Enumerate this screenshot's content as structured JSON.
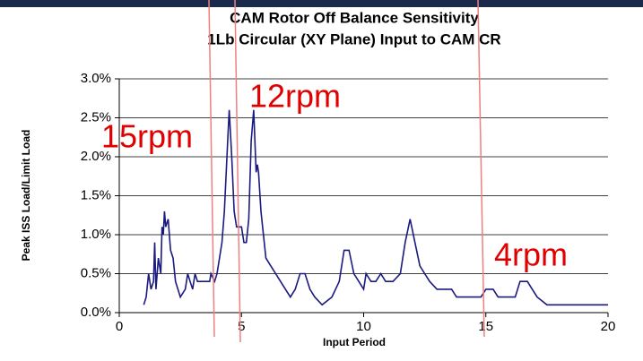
{
  "chart_data": {
    "type": "line",
    "title": "CAM Rotor Off Balance Sensitivity",
    "subtitle": "1Lb Circular (XY Plane) Input to CAM CR",
    "xlabel": "Input Period",
    "ylabel": "Peak ISS Load/Limit Load",
    "x": [
      1.0,
      1.1,
      1.2,
      1.3,
      1.4,
      1.45,
      1.5,
      1.6,
      1.7,
      1.75,
      1.8,
      1.85,
      1.9,
      2.0,
      2.1,
      2.2,
      2.3,
      2.4,
      2.5,
      2.7,
      2.8,
      2.9,
      3.0,
      3.1,
      3.2,
      3.5,
      3.7,
      3.75,
      3.9,
      4.0,
      4.2,
      4.3,
      4.45,
      4.5,
      4.6,
      4.7,
      4.8,
      5.0,
      5.1,
      5.2,
      5.3,
      5.4,
      5.5,
      5.6,
      5.65,
      5.7,
      5.8,
      6.0,
      6.2,
      6.4,
      6.6,
      6.8,
      7.0,
      7.2,
      7.4,
      7.6,
      7.8,
      8.0,
      8.3,
      8.7,
      9.0,
      9.2,
      9.4,
      9.6,
      9.8,
      10.0,
      10.1,
      10.3,
      10.5,
      10.7,
      10.9,
      11.2,
      11.5,
      11.7,
      11.9,
      12.1,
      12.3,
      12.5,
      12.7,
      13.0,
      13.6,
      13.8,
      14.8,
      15.0,
      15.3,
      15.5,
      16.2,
      16.4,
      16.7,
      16.9,
      17.1,
      17.5,
      20.0
    ],
    "series": [
      {
        "name": "Peak ISS Load/Limit Load",
        "color": "#1a1a80",
        "values": [
          0.1,
          0.2,
          0.5,
          0.3,
          0.4,
          0.9,
          0.3,
          0.7,
          0.5,
          1.1,
          1.0,
          1.3,
          1.1,
          1.2,
          0.8,
          0.7,
          0.4,
          0.3,
          0.2,
          0.3,
          0.5,
          0.4,
          0.3,
          0.5,
          0.4,
          0.4,
          0.4,
          0.5,
          0.4,
          0.5,
          0.9,
          1.3,
          2.3,
          2.6,
          2.0,
          1.3,
          1.1,
          1.1,
          0.9,
          0.9,
          1.2,
          2.2,
          2.6,
          1.8,
          1.9,
          1.8,
          1.3,
          0.7,
          0.6,
          0.5,
          0.4,
          0.3,
          0.2,
          0.3,
          0.5,
          0.5,
          0.3,
          0.2,
          0.1,
          0.2,
          0.4,
          0.8,
          0.8,
          0.5,
          0.4,
          0.3,
          0.5,
          0.4,
          0.4,
          0.5,
          0.4,
          0.4,
          0.5,
          0.9,
          1.2,
          0.9,
          0.6,
          0.5,
          0.4,
          0.3,
          0.3,
          0.2,
          0.2,
          0.3,
          0.3,
          0.2,
          0.2,
          0.4,
          0.4,
          0.3,
          0.2,
          0.1,
          0.1
        ]
      }
    ],
    "xlim": [
      0,
      20
    ],
    "xticks": [
      0,
      5,
      10,
      15,
      20
    ],
    "ylim": [
      0,
      3
    ],
    "yticks": [
      {
        "value": 0,
        "label": "0.0%"
      },
      {
        "value": 0.5,
        "label": "0.5%"
      },
      {
        "value": 1,
        "label": "1.0%"
      },
      {
        "value": 1.5,
        "label": "1.5%"
      },
      {
        "value": 2,
        "label": "2.0%"
      },
      {
        "value": 2.5,
        "label": "2.5%"
      },
      {
        "value": 3,
        "label": "3.0%"
      }
    ],
    "grid": true,
    "annotations": [
      "15rpm",
      "12rpm",
      "4rpm"
    ]
  }
}
